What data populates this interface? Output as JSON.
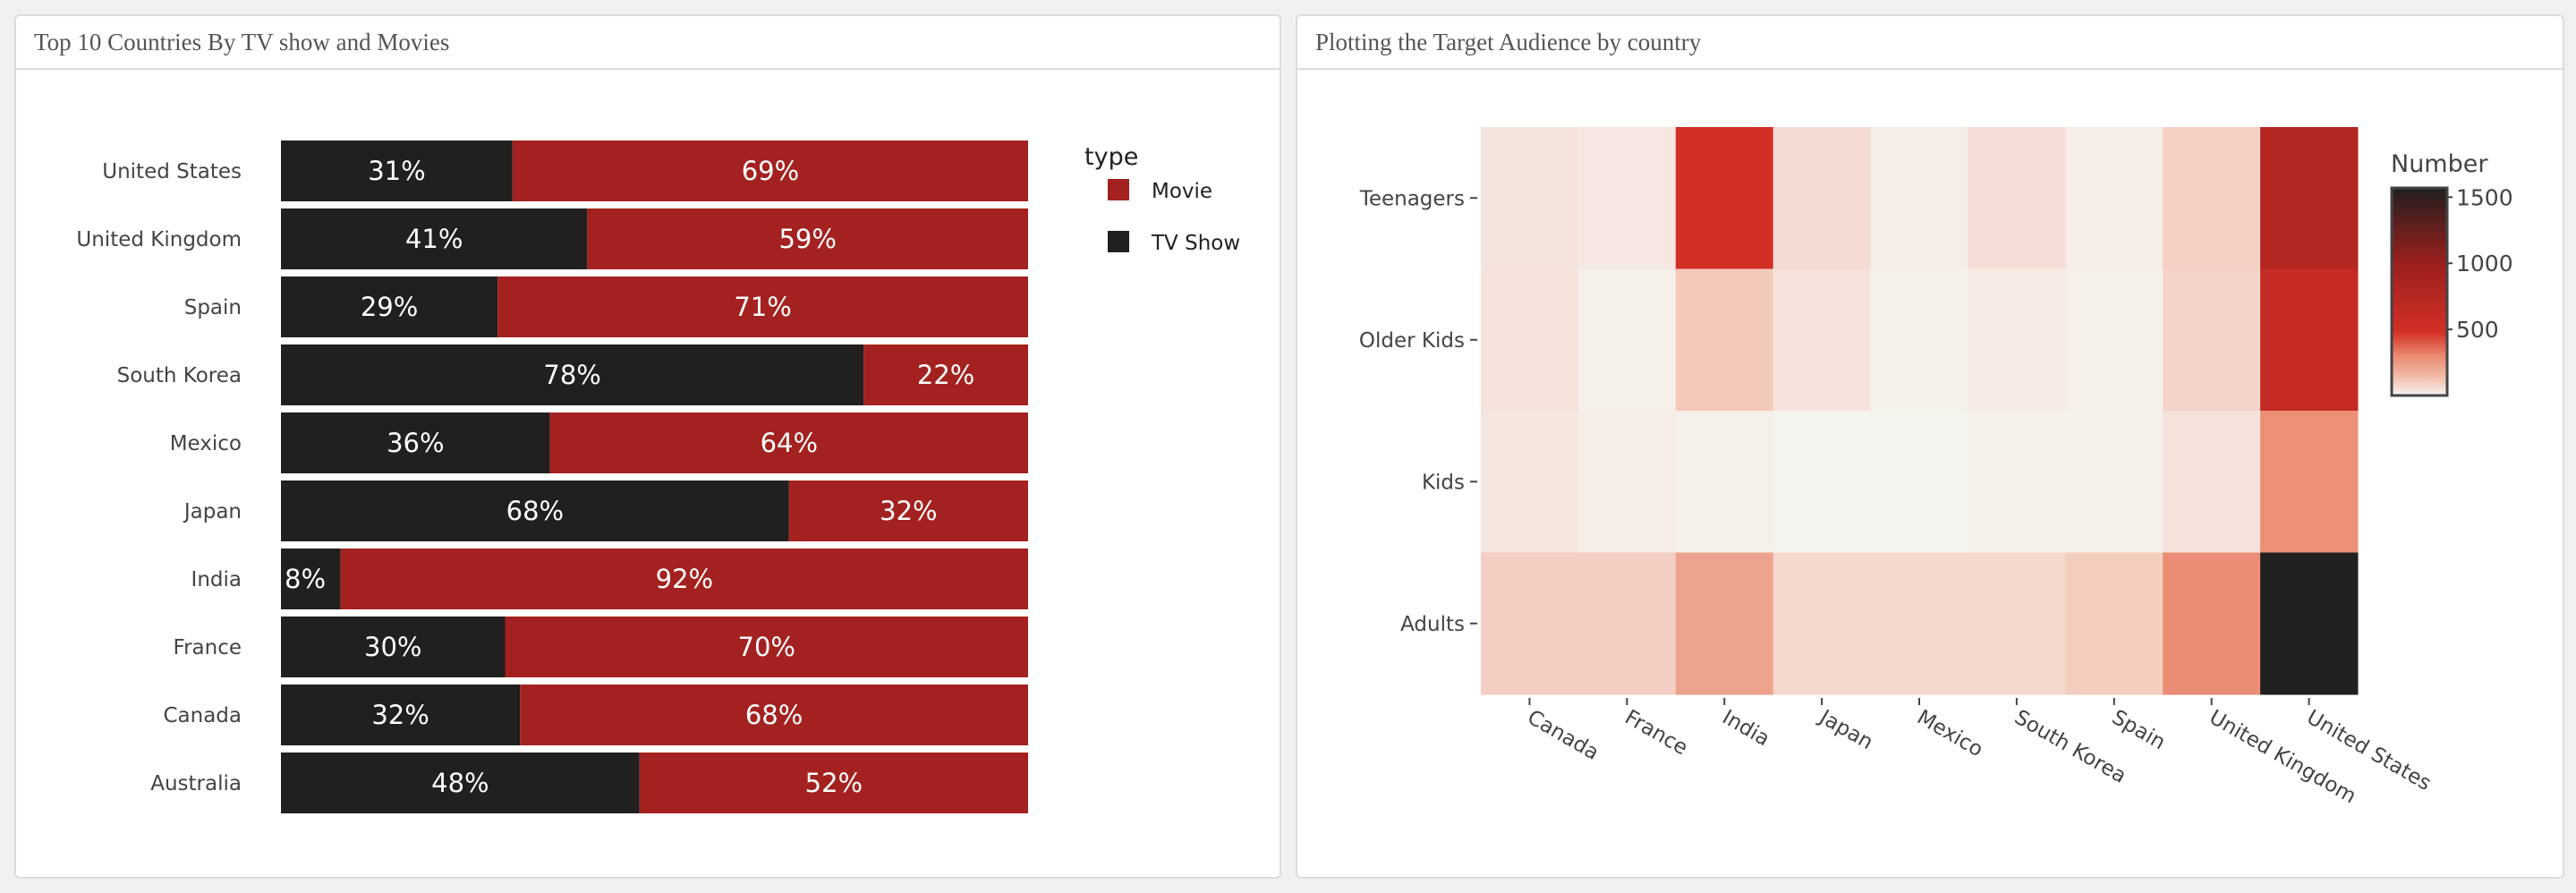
{
  "panels": {
    "left_title": "Top 10 Countries By TV show and Movies",
    "right_title": "Plotting the Target Audience by country"
  },
  "chart_data": [
    {
      "type": "bar",
      "orientation": "horizontal",
      "stacked": "percent",
      "categories": [
        "United States",
        "United Kingdom",
        "Spain",
        "South Korea",
        "Mexico",
        "Japan",
        "India",
        "France",
        "Canada",
        "Australia"
      ],
      "series": [
        {
          "name": "TV Show",
          "color": "#221f1f",
          "values": [
            31,
            41,
            29,
            78,
            36,
            68,
            8,
            30,
            32,
            48
          ]
        },
        {
          "name": "Movie",
          "color": "#a3221f",
          "values": [
            69,
            59,
            71,
            22,
            64,
            32,
            92,
            70,
            68,
            52
          ]
        }
      ],
      "value_suffix": "%",
      "legend": {
        "title": "type",
        "position": "right",
        "entries": [
          "Movie",
          "TV Show"
        ]
      }
    },
    {
      "type": "heatmap",
      "x": [
        "Canada",
        "France",
        "India",
        "Japan",
        "Mexico",
        "South Korea",
        "Spain",
        "United Kingdom",
        "United States"
      ],
      "y": [
        "Teenagers",
        "Older Kids",
        "Kids",
        "Adults"
      ],
      "z": [
        [
          40,
          30,
          480,
          60,
          20,
          55,
          20,
          90,
          760
        ],
        [
          45,
          15,
          110,
          45,
          10,
          25,
          12,
          80,
          620
        ],
        [
          35,
          20,
          15,
          5,
          5,
          10,
          10,
          45,
          280
        ],
        [
          95,
          95,
          220,
          70,
          70,
          70,
          100,
          290,
          1570
        ]
      ],
      "colorbar": {
        "title": "Number",
        "ticks": [
          500,
          1000,
          1500
        ],
        "range": [
          0,
          1570
        ],
        "position": "right"
      }
    }
  ]
}
